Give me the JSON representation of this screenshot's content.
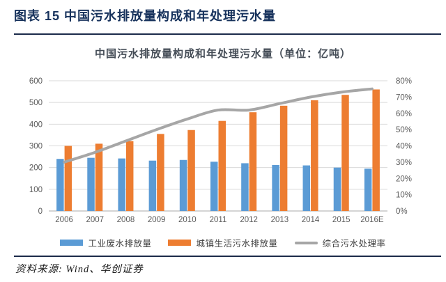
{
  "header": {
    "title": "图表 15 中国污水排放量构成和年处理污水量"
  },
  "footer": {
    "source": "资料来源: Wind、华创证券"
  },
  "colors": {
    "industrial_bar": "#5b9bd5",
    "domestic_bar": "#ed7d31",
    "rate_line": "#a6a6a6",
    "gridline": "#d9d9d9",
    "axis_line": "#c6c6c6",
    "tick_text": "#595959",
    "header_navy": "#17325c"
  },
  "chart_data": {
    "type": "bar",
    "subtype": "grouped-bar-with-line-combo",
    "title": "中国污水排放量构成和年处理污水量（单位：亿吨）",
    "categories": [
      "2006",
      "2007",
      "2008",
      "2009",
      "2010",
      "2011",
      "2012",
      "2013",
      "2014",
      "2015",
      "2016E"
    ],
    "series": [
      {
        "name": "工业废水排放量",
        "type": "bar",
        "axis": "left",
        "values": [
          240,
          245,
          242,
          232,
          235,
          227,
          220,
          212,
          210,
          200,
          195
        ]
      },
      {
        "name": "城镇生活污水排放量",
        "type": "bar",
        "axis": "left",
        "values": [
          300,
          310,
          322,
          355,
          373,
          415,
          455,
          485,
          510,
          535,
          560
        ]
      },
      {
        "name": "综合污水处理率",
        "type": "line",
        "axis": "right",
        "values": [
          30,
          36,
          43,
          50,
          56.5,
          62,
          62,
          66,
          70,
          73,
          75
        ]
      }
    ],
    "left_axis": {
      "min": 0,
      "max": 600,
      "step": 100,
      "tick_labels": [
        "0",
        "100",
        "200",
        "300",
        "400",
        "500",
        "600"
      ]
    },
    "right_axis": {
      "min": 0,
      "max": 80,
      "step": 10,
      "tick_labels": [
        "0%",
        "10%",
        "20%",
        "30%",
        "40%",
        "50%",
        "60%",
        "70%",
        "80%"
      ]
    },
    "grid": true,
    "legend_position": "bottom"
  }
}
